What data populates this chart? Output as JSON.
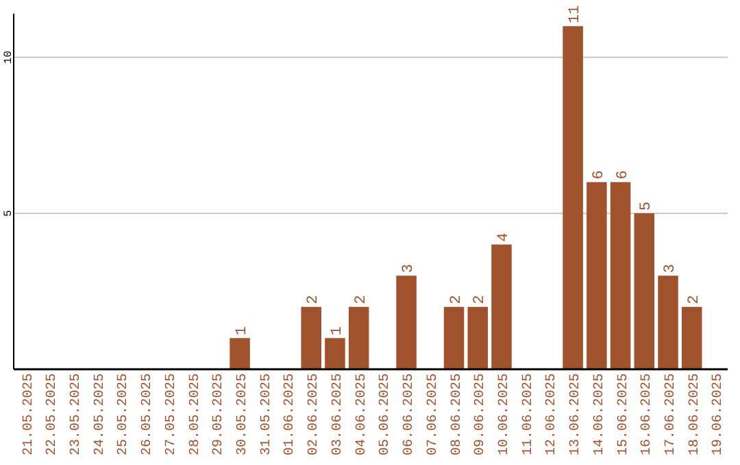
{
  "chart_data": {
    "type": "bar",
    "categories": [
      "21.05.2025",
      "22.05.2025",
      "23.05.2025",
      "24.05.2025",
      "25.05.2025",
      "26.05.2025",
      "27.05.2025",
      "28.05.2025",
      "29.05.2025",
      "30.05.2025",
      "31.05.2025",
      "01.06.2025",
      "02.06.2025",
      "03.06.2025",
      "04.06.2025",
      "05.06.2025",
      "06.06.2025",
      "07.06.2025",
      "08.06.2025",
      "09.06.2025",
      "10.06.2025",
      "11.06.2025",
      "12.06.2025",
      "13.06.2025",
      "14.06.2025",
      "15.06.2025",
      "16.06.2025",
      "17.06.2025",
      "18.06.2025",
      "19.06.2025"
    ],
    "values": [
      0,
      0,
      0,
      0,
      0,
      0,
      0,
      0,
      0,
      1,
      0,
      0,
      2,
      1,
      2,
      0,
      3,
      0,
      2,
      2,
      4,
      0,
      0,
      11,
      6,
      6,
      5,
      3,
      2,
      0
    ],
    "value_labels": [
      null,
      null,
      null,
      null,
      null,
      null,
      null,
      null,
      null,
      "1",
      null,
      null,
      "2",
      "1",
      "2",
      null,
      "3",
      null,
      "2",
      "2",
      "4",
      null,
      null,
      "11",
      "6",
      "6",
      "5",
      "3",
      "2",
      null
    ],
    "color": "#a0522d",
    "ylim": [
      0,
      11.4
    ],
    "yticks": [
      5,
      10
    ],
    "grid": "y"
  }
}
